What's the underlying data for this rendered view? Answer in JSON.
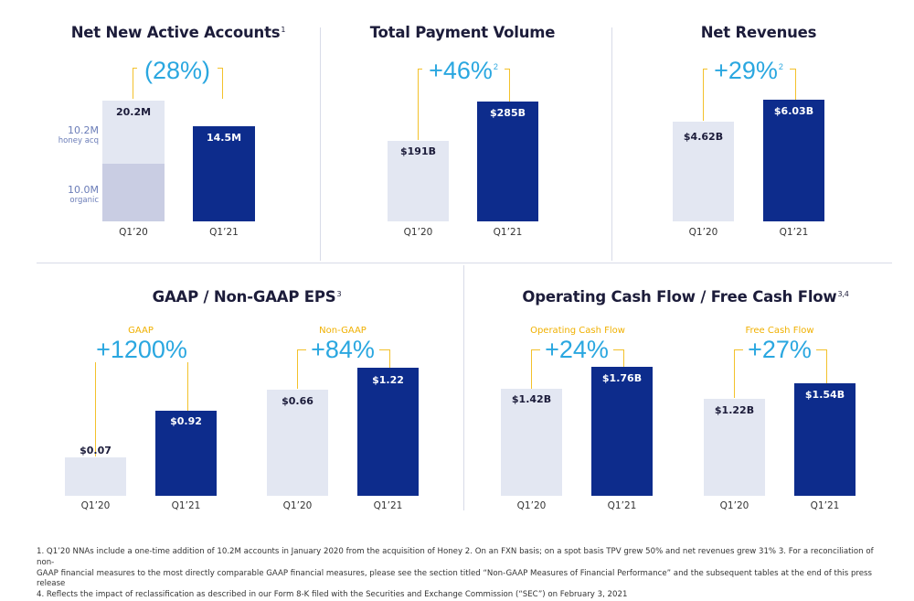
{
  "chart_data": [
    {
      "type": "bar",
      "title": "Net New Active Accounts",
      "title_note": "1",
      "change": "(28%)",
      "categories": [
        "Q1’20",
        "Q1’21"
      ],
      "values": [
        20.2,
        14.5
      ],
      "value_labels": [
        "20.2M",
        "14.5M"
      ],
      "stack_q120": [
        {
          "name": "organic",
          "value": 10.0,
          "label": "10.0M"
        },
        {
          "name": "honey acq",
          "value": 10.2,
          "label": "10.2M"
        }
      ]
    },
    {
      "type": "bar",
      "title": "Total Payment Volume",
      "change": "+46%",
      "change_note": "2",
      "categories": [
        "Q1’20",
        "Q1’21"
      ],
      "values": [
        191,
        285
      ],
      "value_labels": [
        "$191B",
        "$285B"
      ]
    },
    {
      "type": "bar",
      "title": "Net Revenues",
      "change": "+29%",
      "change_note": "2",
      "categories": [
        "Q1’20",
        "Q1’21"
      ],
      "values": [
        4.62,
        6.03
      ],
      "value_labels": [
        "$4.62B",
        "$6.03B"
      ]
    },
    {
      "type": "bar",
      "title": "GAAP / Non-GAAP EPS",
      "title_note": "3",
      "groups": [
        {
          "name": "GAAP",
          "change": "+1200%",
          "categories": [
            "Q1’20",
            "Q1’21"
          ],
          "values": [
            0.07,
            0.92
          ],
          "value_labels": [
            "$0.07",
            "$0.92"
          ]
        },
        {
          "name": "Non-GAAP",
          "change": "+84%",
          "categories": [
            "Q1’20",
            "Q1’21"
          ],
          "values": [
            0.66,
            1.22
          ],
          "value_labels": [
            "$0.66",
            "$1.22"
          ]
        }
      ]
    },
    {
      "type": "bar",
      "title": "Operating Cash Flow / Free Cash Flow",
      "title_note": "3,4",
      "groups": [
        {
          "name": "Operating Cash Flow",
          "change": "+24%",
          "categories": [
            "Q1’20",
            "Q1’21"
          ],
          "values": [
            1.42,
            1.76
          ],
          "value_labels": [
            "$1.42B",
            "$1.76B"
          ]
        },
        {
          "name": "Free Cash Flow",
          "change": "+27%",
          "categories": [
            "Q1’20",
            "Q1’21"
          ],
          "values": [
            1.22,
            1.54
          ],
          "value_labels": [
            "$1.22B",
            "$1.54B"
          ]
        }
      ]
    }
  ],
  "colors": {
    "prior": "#e3e7f2",
    "prior_organic": "#c9cde3",
    "current": "#0d2c8c",
    "change": "#2aa7e0",
    "bracket": "#f3c12b",
    "series_label": "#f0b000"
  },
  "footnotes": {
    "line1": "1.  Q1’20 NNAs include a one-time addition of 10.2M accounts in January 2020 from the acquisition of Honey     2.  On an FXN basis; on a spot basis TPV grew 50% and net revenues grew 31%     3.  For a reconciliation of non-",
    "line2": "GAAP financial measures to the most directly comparable GAAP financial measures, please see the section titled “Non-GAAP Measures of Financial Performance” and the subsequent tables at the end of this press release",
    "line3": "4.  Reflects the impact of reclassification as described in our Form 8-K filed with the Securities and Exchange Commission (“SEC”) on February 3, 2021"
  }
}
